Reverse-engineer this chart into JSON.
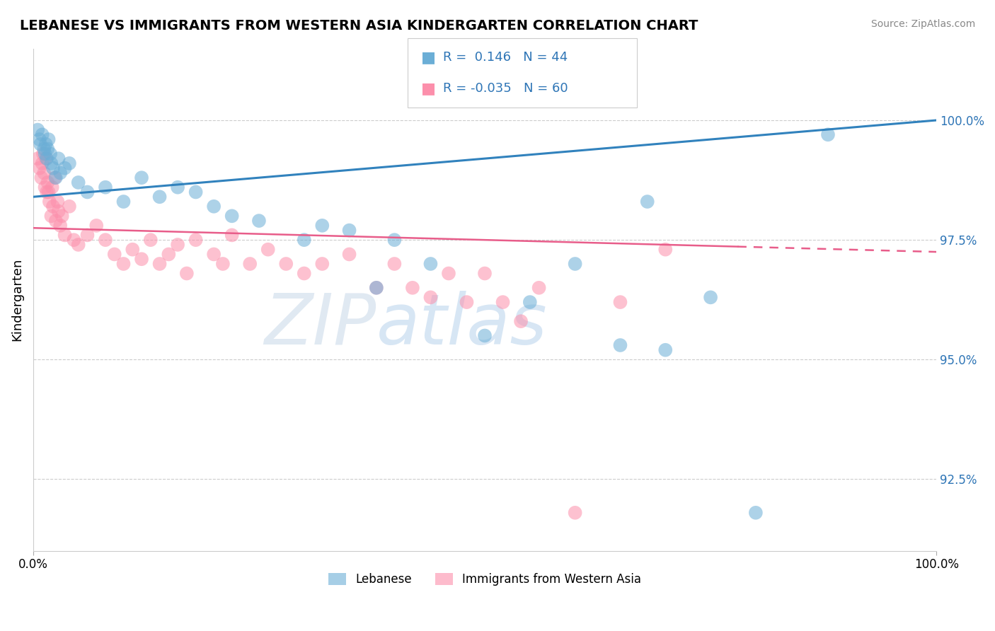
{
  "title": "LEBANESE VS IMMIGRANTS FROM WESTERN ASIA KINDERGARTEN CORRELATION CHART",
  "source": "Source: ZipAtlas.com",
  "ylabel": "Kindergarten",
  "ytick_values": [
    92.5,
    95.0,
    97.5,
    100.0
  ],
  "xlim": [
    0,
    100
  ],
  "ylim": [
    91.0,
    101.5
  ],
  "legend_lebanese": "Lebanese",
  "legend_immigrants": "Immigrants from Western Asia",
  "r_lebanese": 0.146,
  "n_lebanese": 44,
  "r_immigrants": -0.035,
  "n_immigrants": 60,
  "blue_color": "#6BAED6",
  "pink_color": "#FC8FAB",
  "trend_blue": "#3182BD",
  "trend_pink": "#E85D8A",
  "blue_trend_x": [
    0,
    100
  ],
  "blue_trend_y": [
    98.4,
    100.0
  ],
  "pink_trend_x": [
    0,
    100
  ],
  "pink_trend_y": [
    97.75,
    97.25
  ],
  "lebanese_x": [
    0.5,
    0.7,
    0.8,
    1.0,
    1.2,
    1.3,
    1.4,
    1.5,
    1.6,
    1.7,
    1.9,
    2.0,
    2.2,
    2.5,
    2.8,
    3.0,
    3.5,
    4.0,
    5.0,
    6.0,
    8.0,
    10.0,
    12.0,
    14.0,
    16.0,
    18.0,
    20.0,
    22.0,
    25.0,
    30.0,
    32.0,
    35.0,
    38.0,
    40.0,
    44.0,
    50.0,
    55.0,
    60.0,
    65.0,
    68.0,
    70.0,
    75.0,
    80.0,
    88.0
  ],
  "lebanese_y": [
    99.8,
    99.6,
    99.5,
    99.7,
    99.4,
    99.3,
    99.5,
    99.2,
    99.4,
    99.6,
    99.3,
    99.1,
    99.0,
    98.8,
    99.2,
    98.9,
    99.0,
    99.1,
    98.7,
    98.5,
    98.6,
    98.3,
    98.8,
    98.4,
    98.6,
    98.5,
    98.2,
    98.0,
    97.9,
    97.5,
    97.8,
    97.7,
    96.5,
    97.5,
    97.0,
    95.5,
    96.2,
    97.0,
    95.3,
    98.3,
    95.2,
    96.3,
    91.8,
    99.7
  ],
  "immigrants_x": [
    0.5,
    0.7,
    0.9,
    1.0,
    1.1,
    1.2,
    1.3,
    1.4,
    1.5,
    1.6,
    1.7,
    1.8,
    2.0,
    2.1,
    2.2,
    2.4,
    2.5,
    2.7,
    2.8,
    3.0,
    3.2,
    3.5,
    4.0,
    4.5,
    5.0,
    6.0,
    7.0,
    8.0,
    9.0,
    10.0,
    11.0,
    12.0,
    13.0,
    14.0,
    15.0,
    16.0,
    17.0,
    18.0,
    20.0,
    21.0,
    22.0,
    24.0,
    26.0,
    28.0,
    30.0,
    32.0,
    35.0,
    38.0,
    40.0,
    42.0,
    44.0,
    46.0,
    48.0,
    50.0,
    52.0,
    54.0,
    56.0,
    60.0,
    65.0,
    70.0
  ],
  "immigrants_y": [
    99.2,
    99.0,
    98.8,
    99.1,
    99.3,
    98.9,
    98.6,
    99.2,
    98.5,
    98.7,
    98.5,
    98.3,
    98.0,
    98.6,
    98.2,
    98.8,
    97.9,
    98.3,
    98.1,
    97.8,
    98.0,
    97.6,
    98.2,
    97.5,
    97.4,
    97.6,
    97.8,
    97.5,
    97.2,
    97.0,
    97.3,
    97.1,
    97.5,
    97.0,
    97.2,
    97.4,
    96.8,
    97.5,
    97.2,
    97.0,
    97.6,
    97.0,
    97.3,
    97.0,
    96.8,
    97.0,
    97.2,
    96.5,
    97.0,
    96.5,
    96.3,
    96.8,
    96.2,
    96.8,
    96.2,
    95.8,
    96.5,
    91.8,
    96.2,
    97.3
  ]
}
